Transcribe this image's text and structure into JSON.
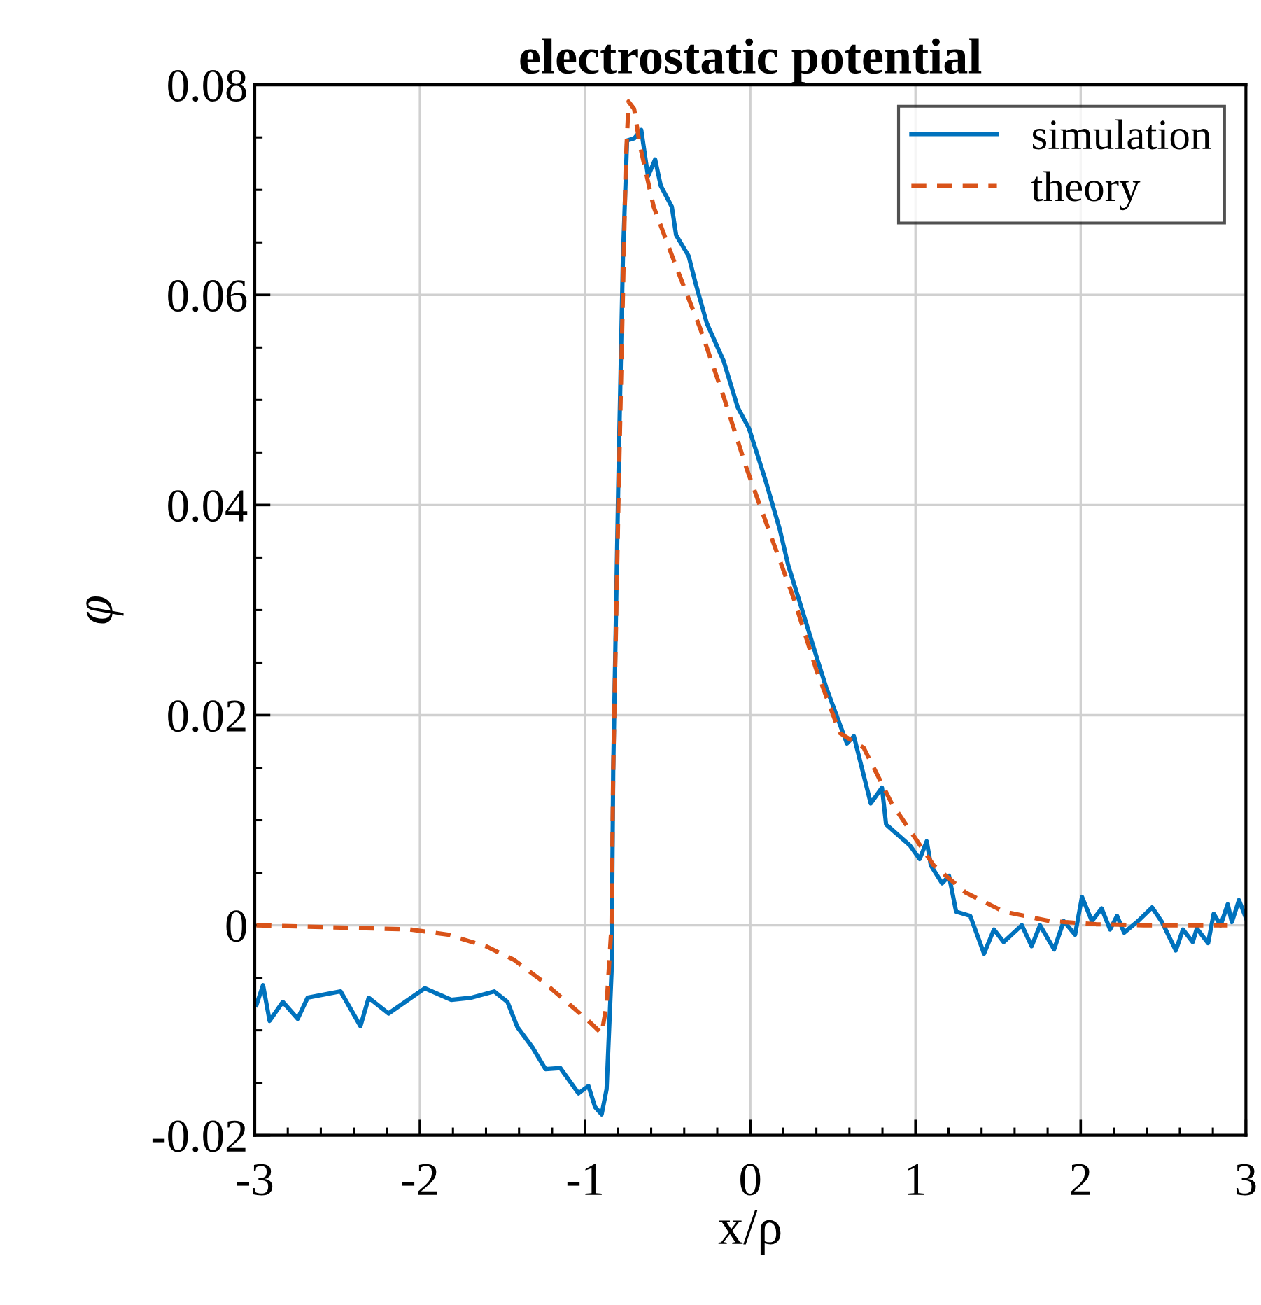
{
  "chart_data": {
    "type": "line",
    "title": "electrostatic potential",
    "xlabel": "x/ρ",
    "ylabel": "φ",
    "xlim": [
      -3,
      3
    ],
    "xticks": [
      {
        "value": -3,
        "label": "-3"
      },
      {
        "value": -2,
        "label": "-2"
      },
      {
        "value": -1,
        "label": "-1"
      },
      0,
      1,
      2,
      3
    ],
    "ylim": [
      -0.02,
      0.08
    ],
    "yticks": [
      {
        "value": -0.02,
        "label": "-0.02"
      },
      0,
      0.02,
      0.04,
      0.06,
      0.08
    ],
    "grid": true,
    "legend": "top right",
    "series": [
      {
        "name": "simulation",
        "color": "#0072bd",
        "line_style": "solid",
        "x": [
          -2.99,
          -2.95,
          -2.91,
          -2.83,
          -2.74,
          -2.68,
          -2.48,
          -2.36,
          -2.31,
          -2.19,
          -1.97,
          -1.81,
          -1.69,
          -1.55,
          -1.47,
          -1.41,
          -1.32,
          -1.24,
          -1.15,
          -1.04,
          -0.98,
          -0.94,
          -0.9,
          -0.87,
          -0.84,
          -0.83,
          -0.8,
          -0.771,
          -0.746,
          -0.703,
          -0.66,
          -0.619,
          -0.576,
          -0.542,
          -0.475,
          -0.449,
          -0.373,
          -0.331,
          -0.263,
          -0.161,
          -0.076,
          -0.008,
          0.093,
          0.178,
          0.229,
          0.314,
          0.398,
          0.458,
          0.585,
          0.627,
          0.729,
          0.797,
          0.822,
          0.966,
          1.025,
          1.068,
          1.093,
          1.161,
          1.203,
          1.246,
          1.331,
          1.415,
          1.475,
          1.534,
          1.644,
          1.703,
          1.754,
          1.839,
          1.898,
          1.966,
          2.008,
          2.068,
          2.127,
          2.178,
          2.22,
          2.263,
          2.347,
          2.432,
          2.492,
          2.576,
          2.619,
          2.678,
          2.703,
          2.771,
          2.805,
          2.847,
          2.89,
          2.915,
          2.958,
          3.0
        ],
        "values": [
          -0.0076,
          -0.0057,
          -0.0091,
          -0.0073,
          -0.0089,
          -0.0069,
          -0.0063,
          -0.0096,
          -0.0069,
          -0.0084,
          -0.006,
          -0.0071,
          -0.0069,
          -0.0063,
          -0.0073,
          -0.0097,
          -0.0116,
          -0.0137,
          -0.0136,
          -0.016,
          -0.0153,
          -0.0173,
          -0.018,
          -0.0156,
          -0.0044,
          0.0147,
          0.0413,
          0.0636,
          0.0747,
          0.0749,
          0.0757,
          0.0713,
          0.0729,
          0.0704,
          0.0684,
          0.0657,
          0.0637,
          0.0611,
          0.0573,
          0.0537,
          0.0493,
          0.0473,
          0.0423,
          0.0377,
          0.0343,
          0.03,
          0.0257,
          0.0227,
          0.0173,
          0.018,
          0.0116,
          0.0131,
          0.0096,
          0.0076,
          0.0063,
          0.008,
          0.0057,
          0.004,
          0.0047,
          0.0013,
          0.0009,
          -0.0027,
          -0.0004,
          -0.0016,
          0.0,
          -0.002,
          0.0,
          -0.0023,
          0.0004,
          -0.0009,
          0.0027,
          0.0004,
          0.0016,
          -0.0004,
          0.0009,
          -0.0007,
          0.0004,
          0.0017,
          0.0003,
          -0.0024,
          -0.0004,
          -0.0016,
          -0.0003,
          -0.0017,
          0.0011,
          0.0,
          0.002,
          0.0003,
          0.0024,
          0.0007
        ]
      },
      {
        "name": "theory",
        "color": "#d95319",
        "line_style": "dashed",
        "x": [
          -2.99,
          -2.06,
          -1.83,
          -1.6,
          -1.43,
          -1.26,
          -1.09,
          -0.98,
          -0.9,
          -0.87,
          -0.84,
          -0.83,
          -0.797,
          -0.754,
          -0.737,
          -0.703,
          -0.669,
          -0.585,
          -0.449,
          -0.305,
          -0.161,
          -0.025,
          0.119,
          0.263,
          0.398,
          0.542,
          0.686,
          0.856,
          1.11,
          1.305,
          1.534,
          1.814,
          2.093,
          2.381,
          2.89
        ],
        "values": [
          0.0,
          -0.0004,
          -0.0009,
          -0.002,
          -0.0033,
          -0.0053,
          -0.0076,
          -0.0091,
          -0.0103,
          -0.0076,
          0.0,
          0.0147,
          0.0413,
          0.0724,
          0.0784,
          0.0777,
          0.0743,
          0.0684,
          0.0627,
          0.0569,
          0.0503,
          0.0436,
          0.0373,
          0.0311,
          0.0244,
          0.0183,
          0.0169,
          0.0116,
          0.0057,
          0.0031,
          0.0013,
          0.0004,
          0.0001,
          0.0,
          0.0
        ]
      }
    ]
  }
}
